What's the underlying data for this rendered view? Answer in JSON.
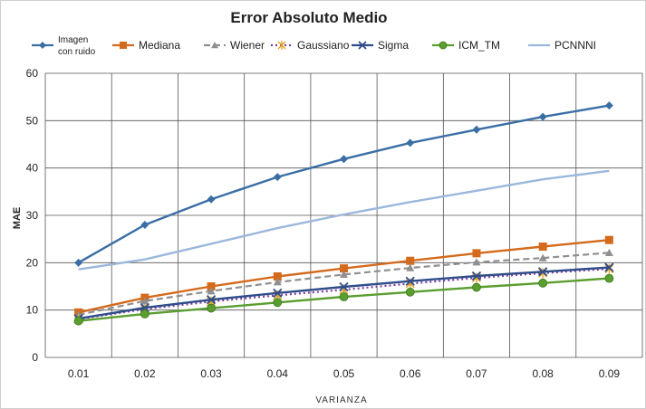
{
  "chart_data": {
    "type": "line",
    "title": "Error Absoluto Medio",
    "xlabel": "VARIANZA",
    "ylabel": "MAE",
    "categories": [
      "0.01",
      "0.02",
      "0.03",
      "0.04",
      "0.05",
      "0.06",
      "0.07",
      "0.08",
      "0.09"
    ],
    "ylim": [
      0,
      60
    ],
    "yticks": [
      0,
      10,
      20,
      30,
      40,
      50,
      60
    ],
    "grid": true,
    "legend_position": "top",
    "series": [
      {
        "name": "Imagen con ruido",
        "color": "#3a6ea5",
        "dash": "solid",
        "marker": "diamond",
        "values": [
          20.0,
          28.0,
          33.4,
          38.1,
          41.9,
          45.3,
          48.1,
          50.8,
          53.2
        ]
      },
      {
        "name": "Mediana",
        "color": "#d46a1c",
        "dash": "solid",
        "marker": "square",
        "values": [
          9.5,
          12.6,
          15.0,
          17.1,
          18.8,
          20.4,
          22.0,
          23.4,
          24.8
        ]
      },
      {
        "name": "Wiener",
        "color": "#8f8f8f",
        "dash": "dash",
        "marker": "triangle",
        "values": [
          9.0,
          11.9,
          14.0,
          15.9,
          17.5,
          18.9,
          20.1,
          21.0,
          22.1
        ]
      },
      {
        "name": "Gaussiano",
        "color": "#7b3fa0",
        "dash": "dot",
        "marker": "star",
        "values": [
          8.1,
          10.2,
          11.8,
          13.1,
          14.3,
          15.6,
          16.8,
          17.8,
          18.7
        ]
      },
      {
        "name": "Sigma",
        "color": "#2f4d8a",
        "dash": "solid",
        "marker": "x",
        "values": [
          8.2,
          10.5,
          12.2,
          13.6,
          14.9,
          16.1,
          17.2,
          18.1,
          19.0
        ]
      },
      {
        "name": "ICM_TM",
        "color": "#5a9e2f",
        "dash": "solid",
        "marker": "circle",
        "values": [
          7.7,
          9.2,
          10.4,
          11.6,
          12.8,
          13.8,
          14.8,
          15.7,
          16.7
        ]
      },
      {
        "name": "PCNNNI",
        "color": "#9bb8dc",
        "dash": "solid",
        "marker": "none",
        "values": [
          18.6,
          20.7,
          24.0,
          27.3,
          30.2,
          32.8,
          35.2,
          37.6,
          39.4
        ]
      }
    ]
  }
}
